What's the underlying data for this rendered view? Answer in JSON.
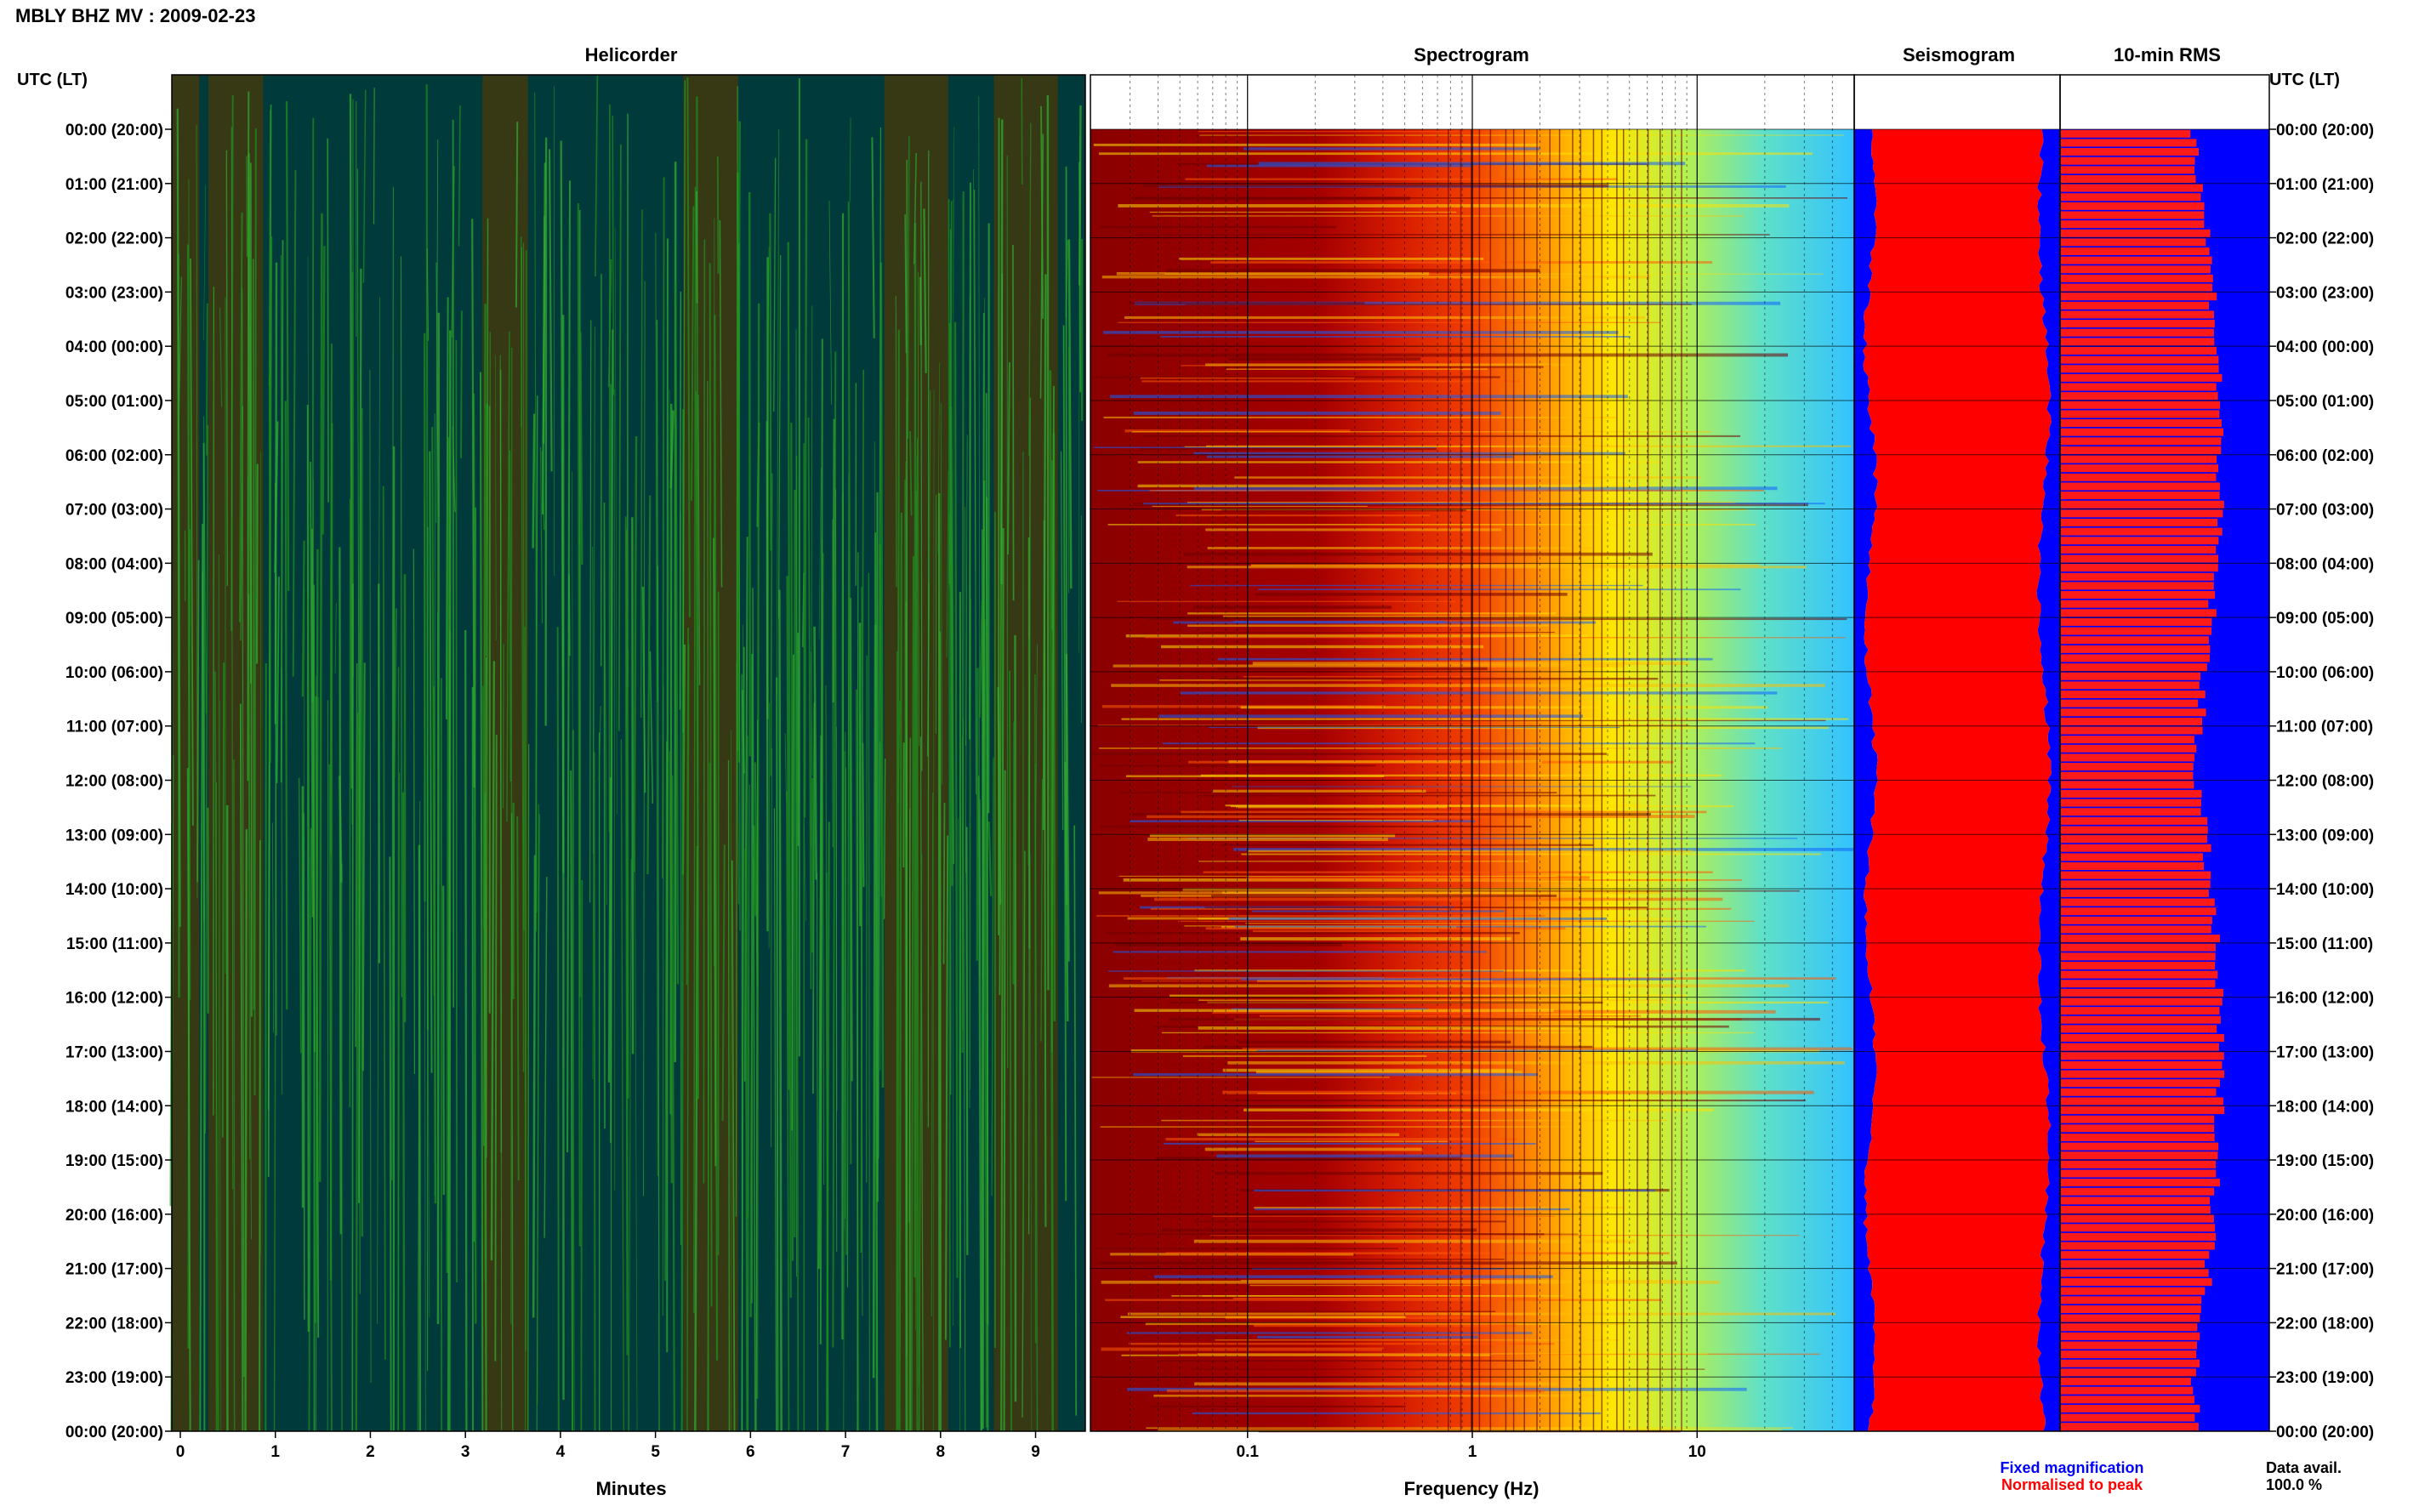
{
  "header": {
    "station": "MBLY BHZ MV",
    "date": "2009-02-23"
  },
  "panels": {
    "helicorder": "Helicorder",
    "spectrogram": "Spectrogram",
    "seismogram": "Seismogram",
    "rms": "10-min RMS"
  },
  "axis": {
    "left_title": "UTC (LT)",
    "right_title": "UTC (LT)",
    "hour_labels": [
      "00:00 (20:00)",
      "01:00 (21:00)",
      "02:00 (22:00)",
      "03:00 (23:00)",
      "04:00 (00:00)",
      "05:00 (01:00)",
      "06:00 (02:00)",
      "07:00 (03:00)",
      "08:00 (04:00)",
      "09:00 (05:00)",
      "10:00 (06:00)",
      "11:00 (07:00)",
      "12:00 (08:00)",
      "13:00 (09:00)",
      "14:00 (10:00)",
      "15:00 (11:00)",
      "16:00 (12:00)",
      "17:00 (13:00)",
      "18:00 (14:00)",
      "19:00 (15:00)",
      "20:00 (16:00)",
      "21:00 (17:00)",
      "22:00 (18:00)",
      "23:00 (19:00)",
      "00:00 (20:00)"
    ],
    "minutes_label": "Minutes",
    "minutes_ticks": [
      "0",
      "1",
      "2",
      "3",
      "4",
      "5",
      "6",
      "7",
      "8",
      "9"
    ],
    "frequency_label": "Frequency (Hz)",
    "frequency_ticks": [
      "0.1",
      "1",
      "10"
    ]
  },
  "legend": {
    "fixed": "Fixed magnification",
    "normalised": "Normalised to peak",
    "fixed_color": "#0000ff",
    "normalised_color": "#ff0000"
  },
  "availability": {
    "label": "Data avail.",
    "value": "100.0 %"
  },
  "chart_data": {
    "type": "heatmap",
    "title": "MBLY BHZ MV : 2009-02-23",
    "panels": [
      "Helicorder",
      "Spectrogram",
      "Seismogram",
      "10-min RMS"
    ],
    "helicorder_xrange_minutes": [
      0,
      10
    ],
    "spectrogram_frequency_range_hz": [
      0.02,
      50
    ],
    "frequency_scale": "log",
    "time_range_hours_utc": [
      0,
      24
    ],
    "rms_bins_per_day": 144,
    "colors": {
      "helicorder_background": "#003a3a",
      "helicorder_trace": "#1e8c1e",
      "spectrogram_low": "#8b0000",
      "spectrogram_high": "#1e90ff",
      "seismogram_fixed": "#0000ff",
      "seismogram_normalised": "#ff0000"
    }
  }
}
